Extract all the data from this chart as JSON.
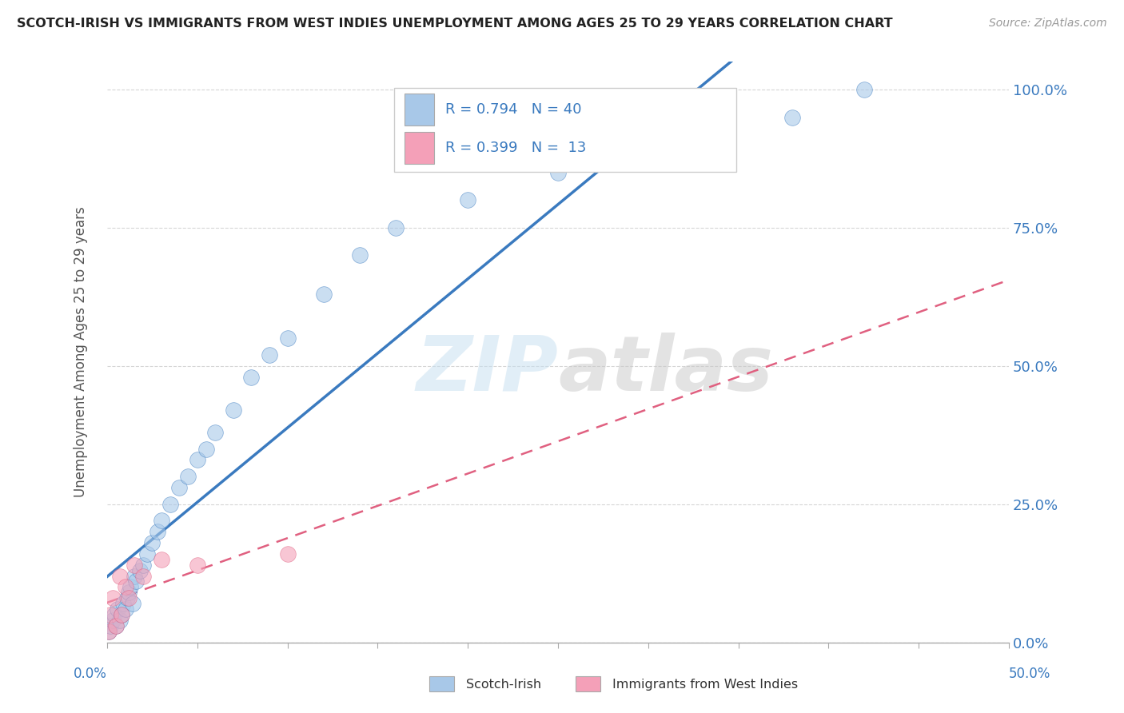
{
  "title": "SCOTCH-IRISH VS IMMIGRANTS FROM WEST INDIES UNEMPLOYMENT AMONG AGES 25 TO 29 YEARS CORRELATION CHART",
  "source": "Source: ZipAtlas.com",
  "ylabel": "Unemployment Among Ages 25 to 29 years",
  "watermark": "ZIPatlas",
  "blue_color": "#a8c8e8",
  "blue_line_color": "#3a7abf",
  "pink_color": "#f4a0b8",
  "pink_line_color": "#e06080",
  "legend_text_color": "#3a7abf",
  "tick_color": "#3a7abf",
  "grid_color": "#cccccc",
  "blue_scatter_x": [
    0.001,
    0.002,
    0.003,
    0.004,
    0.005,
    0.006,
    0.007,
    0.008,
    0.009,
    0.01,
    0.011,
    0.012,
    0.013,
    0.014,
    0.015,
    0.016,
    0.018,
    0.02,
    0.022,
    0.025,
    0.028,
    0.03,
    0.035,
    0.04,
    0.045,
    0.05,
    0.055,
    0.06,
    0.07,
    0.08,
    0.09,
    0.1,
    0.12,
    0.14,
    0.16,
    0.2,
    0.25,
    0.3,
    0.38,
    0.42
  ],
  "blue_scatter_y": [
    0.02,
    0.03,
    0.04,
    0.05,
    0.03,
    0.06,
    0.04,
    0.05,
    0.07,
    0.06,
    0.08,
    0.09,
    0.1,
    0.07,
    0.12,
    0.11,
    0.13,
    0.14,
    0.16,
    0.18,
    0.2,
    0.22,
    0.25,
    0.28,
    0.3,
    0.33,
    0.35,
    0.38,
    0.42,
    0.48,
    0.52,
    0.55,
    0.63,
    0.7,
    0.75,
    0.8,
    0.85,
    0.9,
    0.95,
    1.0
  ],
  "pink_scatter_x": [
    0.001,
    0.002,
    0.003,
    0.005,
    0.007,
    0.008,
    0.01,
    0.012,
    0.015,
    0.02,
    0.03,
    0.05,
    0.1
  ],
  "pink_scatter_y": [
    0.02,
    0.05,
    0.08,
    0.03,
    0.12,
    0.05,
    0.1,
    0.08,
    0.14,
    0.12,
    0.15,
    0.14,
    0.16
  ],
  "xlim": [
    0.0,
    0.5
  ],
  "ylim": [
    0.0,
    1.05
  ],
  "background_color": "#ffffff",
  "plot_background": "#ffffff"
}
